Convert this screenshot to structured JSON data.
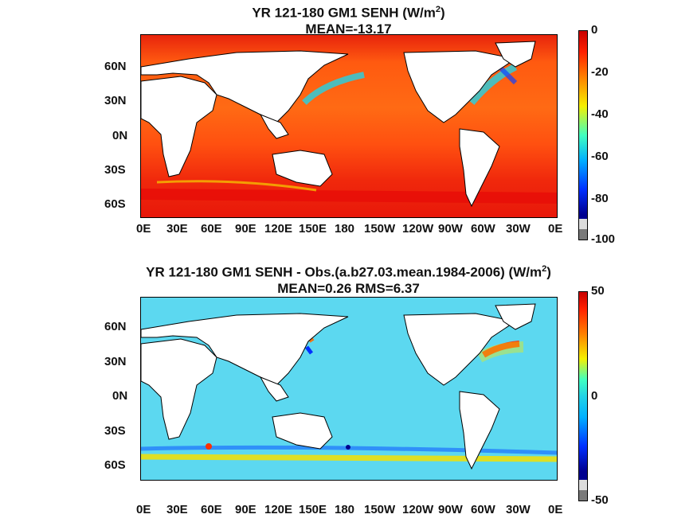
{
  "panels": [
    {
      "title_lines": [
        "YR 121-180 GM1  SENH (W/m",
        "MEAN=-13.17"
      ],
      "colorbar_ticks": [
        "0",
        "-20",
        "-40",
        "-60",
        "-80",
        "-100"
      ]
    },
    {
      "title_lines": [
        "YR 121-180 GM1 SENH - Obs.(a.b27.03.mean.1984-2006) (W/m",
        "MEAN=0.26 RMS=6.37"
      ],
      "colorbar_ticks": [
        "50",
        "0",
        "-50"
      ]
    }
  ],
  "lat_labels": [
    "60N",
    "30N",
    "0N",
    "30S",
    "60S"
  ],
  "lon_labels": [
    "0E",
    "30E",
    "60E",
    "90E",
    "120E",
    "150E",
    "180",
    "150W",
    "120W",
    "90W",
    "60W",
    "30W",
    "0E"
  ],
  "unit_superscript": "2",
  "unit_close": ")",
  "colors": {
    "jet_red": "#e41a0c",
    "jet_orange": "#ff6a00",
    "jet_yellow": "#f5f000",
    "jet_cyan": "#22d3e6",
    "jet_blue": "#1040ff",
    "jet_darkblue": "#000090",
    "land": "#ffffff",
    "missing": "#7a7a7a"
  }
}
